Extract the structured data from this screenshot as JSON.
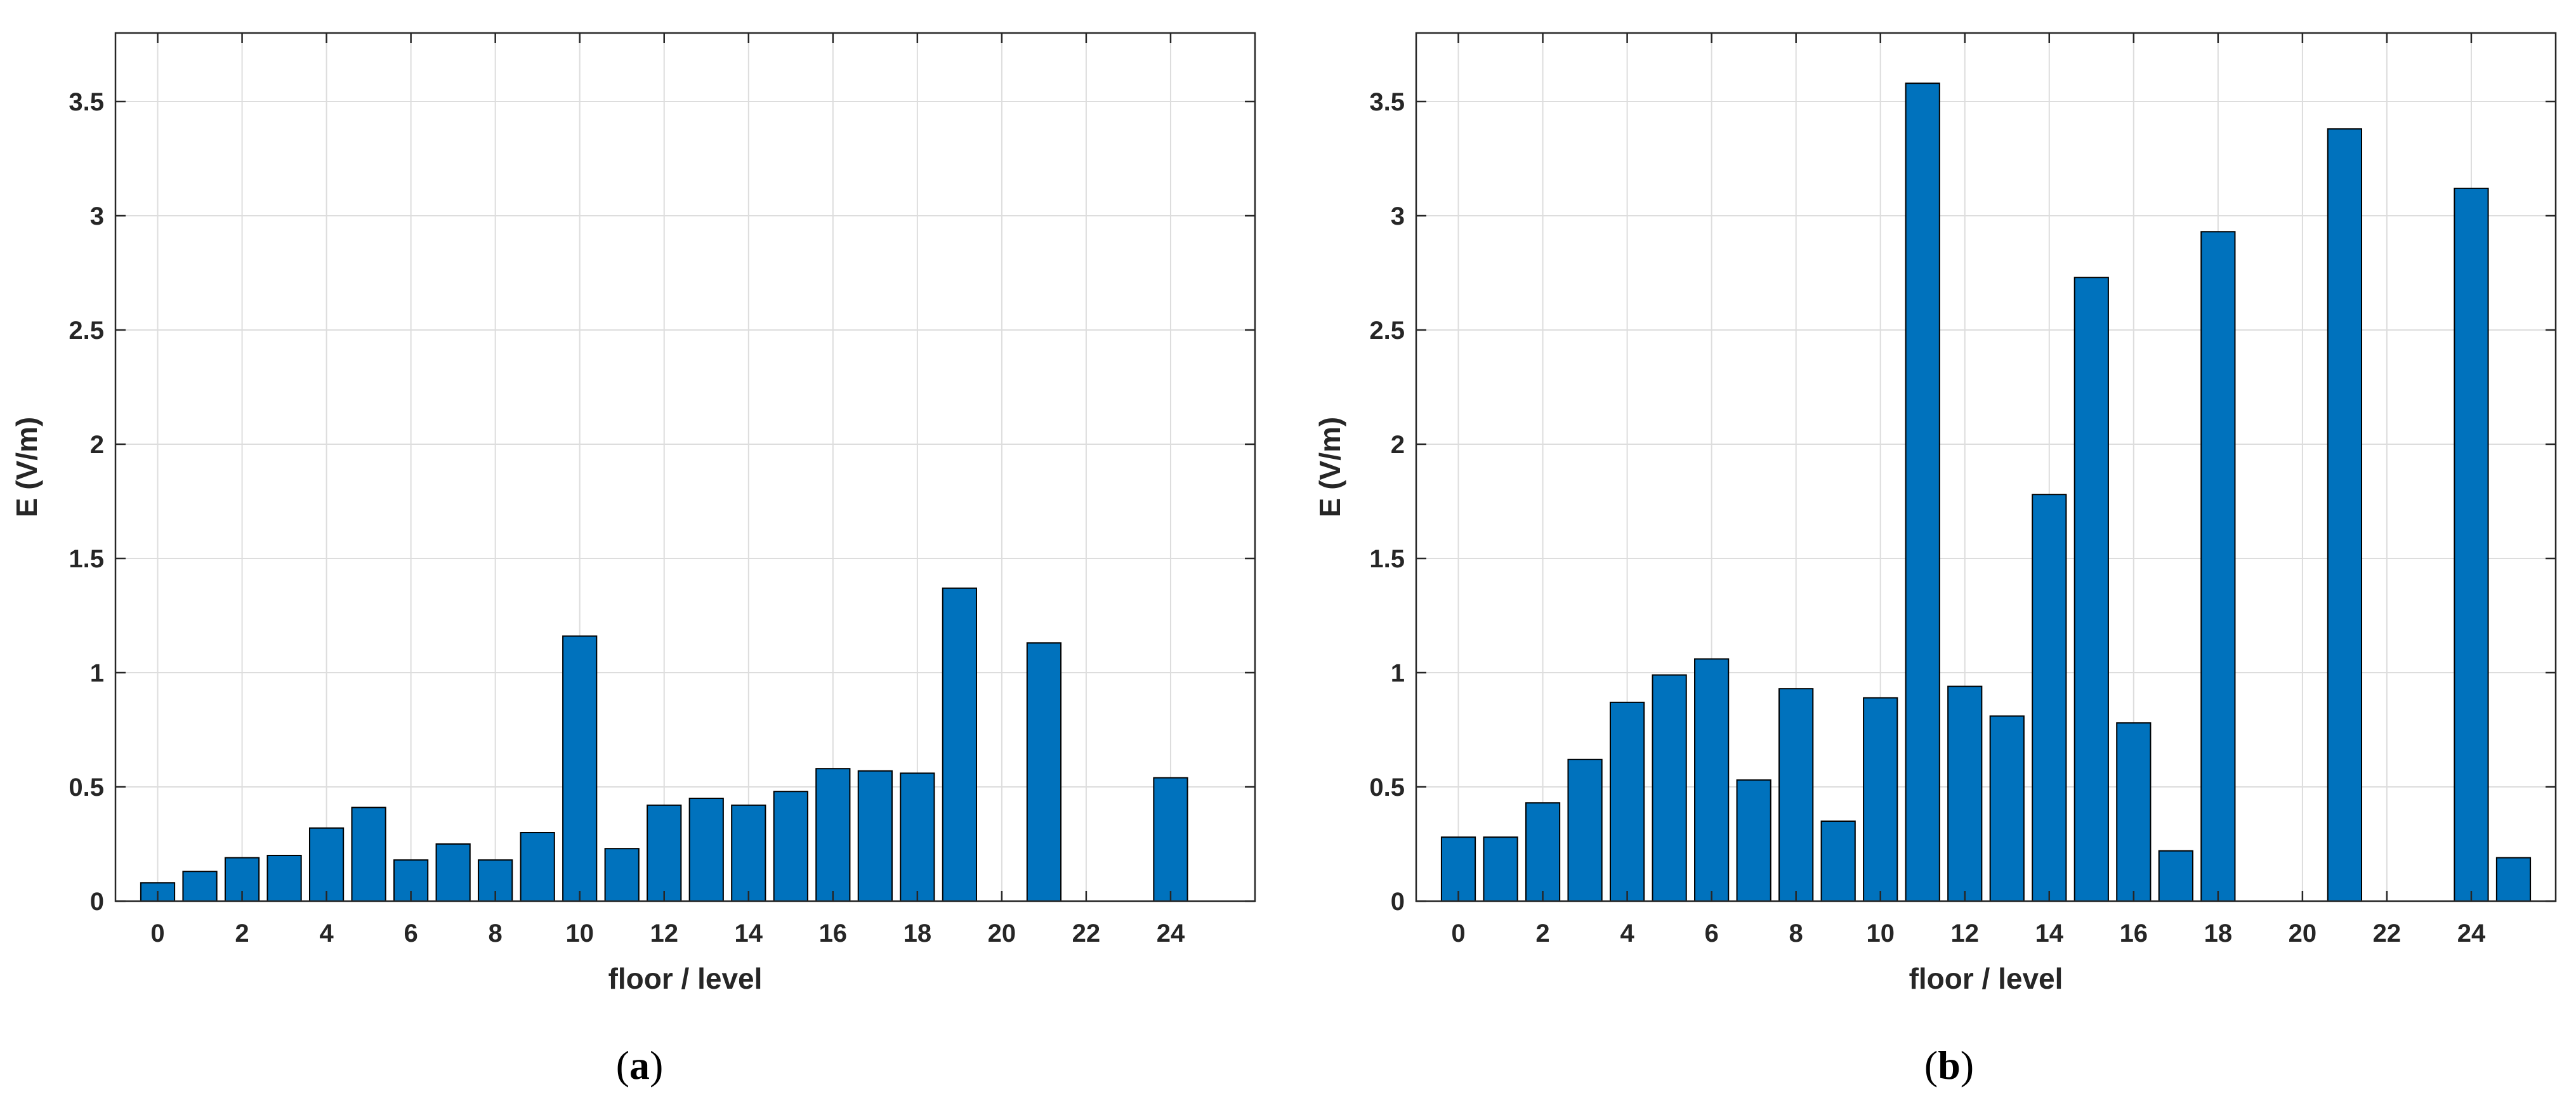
{
  "colors": {
    "bar": "#0072BD",
    "edge": "#000000",
    "grid": "#DDDDDD",
    "axis": "#262626"
  },
  "chart_data": [
    {
      "type": "bar",
      "panel_letter": "a",
      "xlabel": "floor / level",
      "ylabel": "E (V/m)",
      "x": [
        0,
        1,
        2,
        3,
        4,
        5,
        6,
        7,
        8,
        9,
        10,
        11,
        12,
        13,
        14,
        15,
        16,
        17,
        18,
        19,
        20,
        21,
        22,
        23,
        24
      ],
      "values": [
        0.08,
        0.13,
        0.19,
        0.2,
        0.32,
        0.41,
        0.18,
        0.25,
        0.18,
        0.3,
        1.16,
        0.23,
        0.42,
        0.45,
        0.42,
        0.48,
        0.58,
        0.57,
        0.56,
        1.37,
        0,
        1.13,
        0,
        0,
        0.54
      ],
      "xticks": [
        0,
        2,
        4,
        6,
        8,
        10,
        12,
        14,
        16,
        18,
        20,
        22,
        24
      ],
      "yticks": [
        0,
        0.5,
        1,
        1.5,
        2,
        2.5,
        3,
        3.5
      ],
      "xlim": [
        -1,
        26
      ],
      "ylim": [
        0,
        3.8
      ],
      "grid": true
    },
    {
      "type": "bar",
      "panel_letter": "b",
      "xlabel": "floor / level",
      "ylabel": "E (V/m)",
      "x": [
        0,
        1,
        2,
        3,
        4,
        5,
        6,
        7,
        8,
        9,
        10,
        11,
        12,
        13,
        14,
        15,
        16,
        17,
        18,
        19,
        20,
        21,
        22,
        23,
        24,
        25
      ],
      "values": [
        0.28,
        0.28,
        0.43,
        0.62,
        0.87,
        0.99,
        1.06,
        0.53,
        0.93,
        0.35,
        0.89,
        3.58,
        0.94,
        0.81,
        1.78,
        2.73,
        0.78,
        0.22,
        2.93,
        0,
        0,
        3.38,
        0,
        0,
        3.12,
        0.19
      ],
      "xticks": [
        0,
        2,
        4,
        6,
        8,
        10,
        12,
        14,
        16,
        18,
        20,
        22,
        24
      ],
      "yticks": [
        0,
        0.5,
        1,
        1.5,
        2,
        2.5,
        3,
        3.5
      ],
      "xlim": [
        -1,
        26
      ],
      "ylim": [
        0,
        3.8
      ],
      "grid": true
    }
  ]
}
